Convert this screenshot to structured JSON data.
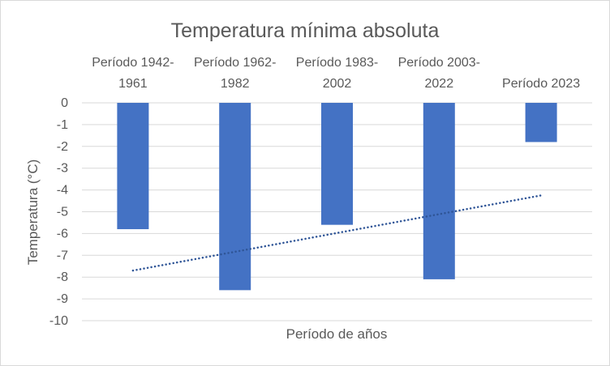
{
  "chart_data": {
    "type": "bar",
    "title": "Temperatura  mínima absoluta",
    "xlabel": "Período de años",
    "ylabel": "Temperatura (°C)",
    "categories": [
      [
        "Período 1942-",
        "1961"
      ],
      [
        "Período 1962-",
        "1982"
      ],
      [
        "Período 1983-",
        "2002"
      ],
      [
        "Período 2003-",
        "2022"
      ],
      [
        "Período 2023"
      ]
    ],
    "series": [
      {
        "values": [
          -5.8,
          -8.6,
          -5.6,
          -8.1,
          -1.8
        ],
        "color": "#4472c4"
      }
    ],
    "trendline": {
      "type": "linear",
      "style": "dotted",
      "color": "#2f5597",
      "start": -7.7,
      "end": -4.25
    },
    "ylim": [
      -10,
      0
    ],
    "yticks": [
      "0",
      "-1",
      "-2",
      "-3",
      "-4",
      "-5",
      "-6",
      "-7",
      "-8",
      "-9",
      "-10"
    ],
    "grid": true,
    "legend": "none"
  }
}
